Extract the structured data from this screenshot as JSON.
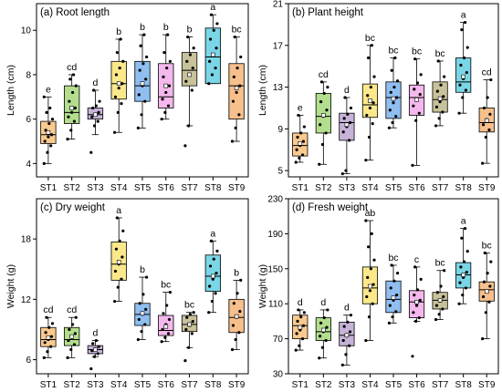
{
  "chart_data": [
    {
      "type": "box",
      "title": "(a) Root length",
      "ylabel": "Length (cm)",
      "ylim": [
        3.4,
        11.2
      ],
      "yticks": [
        4,
        6,
        8,
        10
      ],
      "categories": [
        "ST1",
        "ST2",
        "ST3",
        "ST4",
        "ST5",
        "ST6",
        "ST7",
        "ST8",
        "ST9"
      ],
      "letters": [
        "e",
        "cd",
        "d",
        "b",
        "b",
        "b",
        "b",
        "a",
        "bc"
      ],
      "boxes": [
        {
          "min": 4.0,
          "q1": 4.9,
          "median": 5.3,
          "q3": 5.9,
          "max": 7.0,
          "mean": 5.4
        },
        {
          "min": 5.1,
          "q1": 5.8,
          "median": 6.3,
          "q3": 7.5,
          "max": 8.0,
          "mean": 6.5
        },
        {
          "min": 5.3,
          "q1": 6.0,
          "median": 6.2,
          "q3": 6.5,
          "max": 7.3,
          "mean": 6.2
        },
        {
          "min": 5.4,
          "q1": 6.9,
          "median": 7.6,
          "q3": 8.6,
          "max": 9.6,
          "mean": 7.6
        },
        {
          "min": 5.6,
          "q1": 6.8,
          "median": 7.5,
          "q3": 8.6,
          "max": 9.8,
          "mean": 7.6
        },
        {
          "min": 6.0,
          "q1": 6.5,
          "median": 7.0,
          "q3": 8.5,
          "max": 9.8,
          "mean": 7.5
        },
        {
          "min": 5.7,
          "q1": 7.5,
          "median": 8.2,
          "q3": 9.0,
          "max": 9.7,
          "mean": 8.0
        },
        {
          "min": 7.6,
          "q1": 7.6,
          "median": 8.8,
          "q3": 10.1,
          "max": 10.7,
          "mean": 8.9
        },
        {
          "min": 5.0,
          "q1": 6.0,
          "median": 7.5,
          "q3": 8.5,
          "max": 9.7,
          "mean": 7.4
        }
      ],
      "points": [
        [
          4.0,
          4.5,
          4.8,
          5.0,
          5.2,
          5.3,
          5.5,
          5.8,
          6.0,
          6.3,
          6.5,
          7.0
        ],
        [
          5.1,
          5.5,
          5.9,
          6.1,
          6.3,
          6.5,
          6.8,
          7.2,
          7.5,
          7.8,
          8.0
        ],
        [
          4.5,
          5.7,
          5.9,
          6.1,
          6.2,
          6.3,
          6.5,
          6.6,
          6.8,
          7.3
        ],
        [
          5.4,
          6.3,
          6.7,
          7.0,
          7.4,
          7.6,
          8.0,
          8.3,
          8.6,
          9.0,
          9.6
        ],
        [
          5.6,
          6.2,
          6.8,
          7.1,
          7.5,
          7.8,
          8.2,
          8.5,
          8.8,
          9.3,
          9.8
        ],
        [
          6.0,
          6.3,
          6.6,
          6.9,
          7.2,
          7.5,
          7.9,
          8.3,
          8.6,
          9.0,
          9.8
        ],
        [
          4.8,
          5.7,
          7.3,
          7.7,
          8.0,
          8.3,
          8.6,
          8.9,
          9.2,
          9.7
        ],
        [
          7.6,
          8.0,
          8.3,
          8.6,
          8.9,
          9.2,
          9.6,
          10.0,
          10.3,
          10.7
        ],
        [
          5.0,
          5.6,
          6.2,
          6.8,
          7.2,
          7.5,
          7.9,
          8.3,
          8.8,
          9.7
        ]
      ]
    },
    {
      "type": "box",
      "title": "(b) Plant height",
      "ylabel": "Length (cm)",
      "ylim": [
        4.4,
        21.0
      ],
      "yticks": [
        5,
        9,
        13,
        17,
        21
      ],
      "categories": [
        "ST1",
        "ST2",
        "ST3",
        "ST4",
        "ST5",
        "ST6",
        "ST7",
        "ST8",
        "ST9"
      ],
      "letters": [
        "e",
        "cd",
        "d",
        "bc",
        "bc",
        "bc",
        "bc",
        "a",
        "cd"
      ],
      "boxes": [
        {
          "min": 5.8,
          "q1": 6.4,
          "median": 7.4,
          "q3": 8.6,
          "max": 10.3,
          "mean": 7.6
        },
        {
          "min": 5.6,
          "q1": 8.6,
          "median": 10.2,
          "q3": 12.4,
          "max": 13.5,
          "mean": 10.3
        },
        {
          "min": 4.7,
          "q1": 7.9,
          "median": 9.6,
          "q3": 10.5,
          "max": 12.0,
          "mean": 9.4
        },
        {
          "min": 6.0,
          "q1": 10.1,
          "median": 11.3,
          "q3": 13.3,
          "max": 17.0,
          "mean": 11.7
        },
        {
          "min": 9.1,
          "q1": 10.0,
          "median": 12.0,
          "q3": 13.5,
          "max": 15.8,
          "mean": 11.9
        },
        {
          "min": 5.5,
          "q1": 10.3,
          "median": 12.0,
          "q3": 13.2,
          "max": 15.7,
          "mean": 11.8
        },
        {
          "min": 9.3,
          "q1": 10.6,
          "median": 11.8,
          "q3": 13.5,
          "max": 15.5,
          "mean": 11.9
        },
        {
          "min": 10.5,
          "q1": 12.5,
          "median": 13.5,
          "q3": 15.8,
          "max": 19.2,
          "mean": 14.0
        },
        {
          "min": 5.7,
          "q1": 8.7,
          "median": 9.6,
          "q3": 11.0,
          "max": 13.7,
          "mean": 9.8
        }
      ],
      "points": [
        [
          5.8,
          6.2,
          6.5,
          7.0,
          7.4,
          7.8,
          8.2,
          8.6,
          9.2,
          10.3
        ],
        [
          5.6,
          7.5,
          8.6,
          9.4,
          10.2,
          10.8,
          11.6,
          12.4,
          13.0,
          13.5
        ],
        [
          4.7,
          5.0,
          7.9,
          8.7,
          9.2,
          9.6,
          10.0,
          10.4,
          11.0,
          12.0
        ],
        [
          6.0,
          8.2,
          9.5,
          10.3,
          11.0,
          11.5,
          12.2,
          13.0,
          14.0,
          15.8,
          17.0
        ],
        [
          9.1,
          9.6,
          10.2,
          10.8,
          11.5,
          12.0,
          12.5,
          13.0,
          13.6,
          14.6,
          15.8
        ],
        [
          5.5,
          9.8,
          10.5,
          11.2,
          11.8,
          12.3,
          12.8,
          13.4,
          14.2,
          15.7
        ],
        [
          9.3,
          10.0,
          10.6,
          11.1,
          11.6,
          12.1,
          12.6,
          13.2,
          14.0,
          15.5
        ],
        [
          10.5,
          12.0,
          12.7,
          13.2,
          13.8,
          14.4,
          15.1,
          15.8,
          16.8,
          18.5,
          19.2
        ],
        [
          5.7,
          8.2,
          8.9,
          9.4,
          9.9,
          10.4,
          11.0,
          12.0,
          13.7
        ]
      ]
    },
    {
      "type": "box",
      "title": "(c) Dry weight",
      "ylabel": "Weight (g)",
      "ylim": [
        4.6,
        22.0
      ],
      "yticks": [
        6,
        12,
        18
      ],
      "categories": [
        "ST1",
        "ST2",
        "ST3",
        "ST4",
        "ST5",
        "ST6",
        "ST7",
        "ST8",
        "ST9"
      ],
      "letters": [
        "cd",
        "cd",
        "d",
        "a",
        "b",
        "bc",
        "bc",
        "a",
        "b"
      ],
      "boxes": [
        {
          "min": 6.2,
          "q1": 7.3,
          "median": 8.0,
          "q3": 9.2,
          "max": 10.2,
          "mean": 8.2
        },
        {
          "min": 6.2,
          "q1": 7.4,
          "median": 8.0,
          "q3": 9.2,
          "max": 10.2,
          "mean": 8.3
        },
        {
          "min": 6.3,
          "q1": 6.6,
          "median": 7.0,
          "q3": 7.4,
          "max": 7.9,
          "mean": 7.0
        },
        {
          "min": 11.8,
          "q1": 13.9,
          "median": 15.5,
          "q3": 17.7,
          "max": 20.1,
          "mean": 15.7
        },
        {
          "min": 8.0,
          "q1": 9.4,
          "median": 10.5,
          "q3": 11.6,
          "max": 14.2,
          "mean": 10.6
        },
        {
          "min": 7.8,
          "q1": 8.4,
          "median": 8.9,
          "q3": 10.4,
          "max": 12.7,
          "mean": 9.3
        },
        {
          "min": 7.2,
          "q1": 8.8,
          "median": 9.5,
          "q3": 10.4,
          "max": 10.7,
          "mean": 9.5
        },
        {
          "min": 10.7,
          "q1": 12.8,
          "median": 14.3,
          "q3": 16.4,
          "max": 17.8,
          "mean": 14.3
        },
        {
          "min": 7.0,
          "q1": 8.7,
          "median": 10.2,
          "q3": 12.0,
          "max": 13.9,
          "mean": 10.3
        }
      ],
      "points": [
        [
          6.2,
          6.8,
          7.3,
          7.7,
          8.0,
          8.3,
          8.7,
          9.2,
          9.6,
          10.2
        ],
        [
          6.2,
          7.0,
          7.5,
          7.9,
          8.2,
          8.6,
          9.0,
          9.5,
          10.2
        ],
        [
          5.1,
          6.3,
          6.6,
          6.9,
          7.1,
          7.3,
          7.6,
          7.9
        ],
        [
          11.8,
          13.2,
          14.0,
          14.8,
          15.5,
          16.2,
          17.0,
          17.8,
          18.8,
          20.1
        ],
        [
          8.0,
          8.8,
          9.5,
          10.0,
          10.5,
          11.0,
          11.6,
          12.5,
          14.2
        ],
        [
          7.8,
          8.2,
          8.6,
          9.0,
          9.5,
          10.0,
          10.6,
          11.4,
          12.7
        ],
        [
          5.9,
          7.2,
          8.6,
          9.0,
          9.4,
          9.8,
          10.2,
          10.5,
          10.7
        ],
        [
          10.7,
          11.8,
          12.6,
          13.3,
          14.0,
          14.6,
          15.3,
          16.0,
          16.8,
          17.8
        ],
        [
          7.0,
          8.0,
          8.7,
          9.4,
          10.2,
          10.8,
          11.6,
          12.6,
          13.9
        ]
      ]
    },
    {
      "type": "box",
      "title": "(d) Fresh weight",
      "ylabel": "Weight (g)",
      "ylim": [
        30,
        230
      ],
      "yticks": [
        30,
        70,
        110,
        150,
        190,
        230
      ],
      "categories": [
        "ST1",
        "ST2",
        "ST3",
        "ST4",
        "ST5",
        "ST6",
        "ST7",
        "ST8",
        "ST9"
      ],
      "letters": [
        "d",
        "d",
        "d",
        "ab",
        "bc",
        "c",
        "bc",
        "a",
        "bc"
      ],
      "boxes": [
        {
          "min": 57,
          "q1": 70,
          "median": 85,
          "q3": 97,
          "max": 103,
          "mean": 83
        },
        {
          "min": 48,
          "q1": 68,
          "median": 78,
          "q3": 94,
          "max": 103,
          "mean": 80
        },
        {
          "min": 40,
          "q1": 62,
          "median": 74,
          "q3": 89,
          "max": 97,
          "mean": 74
        },
        {
          "min": 68,
          "q1": 110,
          "median": 128,
          "q3": 152,
          "max": 205,
          "mean": 130
        },
        {
          "min": 88,
          "q1": 100,
          "median": 115,
          "q3": 136,
          "max": 154,
          "mean": 117
        },
        {
          "min": 90,
          "q1": 94,
          "median": 112,
          "q3": 125,
          "max": 152,
          "mean": 112
        },
        {
          "min": 92,
          "q1": 104,
          "median": 114,
          "q3": 123,
          "max": 148,
          "mean": 114
        },
        {
          "min": 110,
          "q1": 128,
          "median": 143,
          "q3": 157,
          "max": 196,
          "mean": 143
        },
        {
          "min": 70,
          "q1": 113,
          "median": 126,
          "q3": 135,
          "max": 168,
          "mean": 124
        }
      ],
      "points": [
        [
          57,
          62,
          70,
          76,
          80,
          85,
          90,
          95,
          100,
          103
        ],
        [
          48,
          60,
          68,
          73,
          78,
          83,
          88,
          94,
          103
        ],
        [
          40,
          52,
          62,
          68,
          73,
          78,
          84,
          89,
          97
        ],
        [
          68,
          95,
          110,
          118,
          125,
          132,
          140,
          150,
          160,
          175,
          190,
          205
        ],
        [
          88,
          95,
          101,
          108,
          114,
          120,
          128,
          136,
          145,
          154
        ],
        [
          50,
          90,
          94,
          100,
          108,
          114,
          120,
          126,
          138,
          152
        ],
        [
          92,
          98,
          104,
          108,
          113,
          118,
          123,
          130,
          148
        ],
        [
          110,
          120,
          128,
          134,
          140,
          146,
          152,
          158,
          170,
          185,
          196
        ],
        [
          70,
          100,
          112,
          118,
          124,
          130,
          135,
          145,
          158,
          168
        ]
      ]
    }
  ],
  "colors": [
    "#fac98e",
    "#b2de8d",
    "#c7b3d8",
    "#fae88b",
    "#8fbef0",
    "#f4b8ec",
    "#c8c29a",
    "#7ad6e6",
    "#f6bf8b"
  ]
}
